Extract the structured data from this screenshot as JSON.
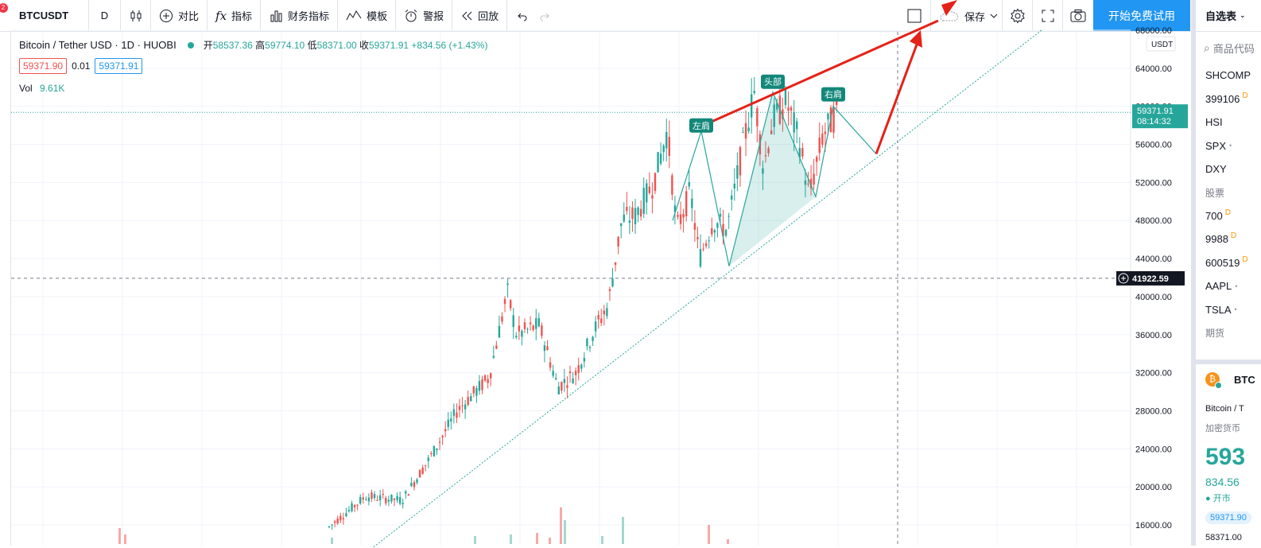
{
  "toolbar": {
    "symbol": "BTCUSDT",
    "interval": "D",
    "compare": "对比",
    "indicators": "指标",
    "financials": "财务指标",
    "templates": "模板",
    "alert": "警报",
    "replay": "回放",
    "save": "保存",
    "trial_button": "开始免费试用",
    "notification_count": "2"
  },
  "legend": {
    "title": "Bitcoin / Tether USD · 1D · HUOBI",
    "open_label": "开",
    "open": "58537.36",
    "high_label": "高",
    "high": "59774.10",
    "low_label": "低",
    "low": "58371.00",
    "close_label": "收",
    "close": "59371.91",
    "change": "+834.56 (+1.43%)",
    "sell_price": "59371.90",
    "spread": "0.01",
    "buy_price": "59371.91",
    "vol_label": "Vol",
    "vol_value": "9.61K"
  },
  "chart_data": {
    "type": "candlestick",
    "currency_label": "USDT",
    "y_ticks": [
      "68000.00",
      "64000.00",
      "60000.00",
      "56000.00",
      "52000.00",
      "48000.00",
      "44000.00",
      "40000.00",
      "36000.00",
      "32000.00",
      "28000.00",
      "24000.00",
      "20000.00",
      "16000.00"
    ],
    "ylim": [
      15000,
      68500
    ],
    "last_price": "59371.91",
    "countdown": "08:14:32",
    "crosshair_price": "41922.59",
    "pattern_labels": {
      "left_shoulder": "左肩",
      "head": "头部",
      "right_shoulder": "右肩"
    },
    "colors": {
      "up": "#26a69a",
      "down": "#ef5350",
      "annotation": "#e62117",
      "label_bg": "#12877a"
    }
  },
  "watchlist": {
    "title": "自选表",
    "search_placeholder": "商品代码",
    "items": [
      {
        "symbol": "SHCOMP",
        "mark": ""
      },
      {
        "symbol": "399106",
        "mark": "D"
      },
      {
        "symbol": "HSI",
        "mark": ""
      },
      {
        "symbol": "SPX",
        "mark": "•"
      },
      {
        "symbol": "DXY",
        "mark": ""
      }
    ],
    "section_stocks": "股票",
    "stocks": [
      {
        "symbol": "700",
        "mark": "D"
      },
      {
        "symbol": "9988",
        "mark": "D"
      },
      {
        "symbol": "600519",
        "mark": "D"
      },
      {
        "symbol": "AAPL",
        "mark": "•"
      },
      {
        "symbol": "TSLA",
        "mark": "•"
      }
    ],
    "section_futures": "期货"
  },
  "detail": {
    "ticker": "BTC",
    "name": "Bitcoin / T",
    "category": "加密货币",
    "price": "593",
    "change": "834.56",
    "market_status": "开市",
    "pill": "59371.90",
    "low": "58371.00"
  }
}
